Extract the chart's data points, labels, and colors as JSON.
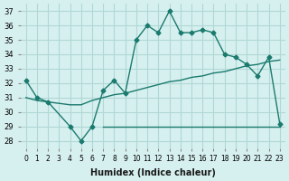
{
  "xlabel": "Humidex (Indice chaleur)",
  "ylabel": "",
  "bg_color": "#d6f0ef",
  "grid_color": "#b0d8d6",
  "line_color": "#1a7a6e",
  "x_ticks": [
    0,
    1,
    2,
    3,
    4,
    5,
    6,
    7,
    8,
    9,
    10,
    11,
    12,
    13,
    14,
    15,
    16,
    17,
    18,
    19,
    20,
    21,
    22,
    23
  ],
  "y_ticks": [
    28,
    29,
    30,
    31,
    32,
    33,
    34,
    35,
    36,
    37
  ],
  "xlim": [
    -0.5,
    23.5
  ],
  "ylim": [
    27.5,
    37.5
  ],
  "line1_x": [
    0,
    1,
    2,
    4,
    5,
    6,
    7,
    8,
    9,
    10,
    11,
    12,
    13,
    14,
    15,
    16,
    17,
    18,
    19,
    20,
    21,
    22,
    23
  ],
  "line1_y": [
    32.2,
    31.0,
    30.7,
    29.0,
    28.0,
    29.0,
    31.5,
    32.2,
    31.3,
    35.0,
    36.0,
    35.5,
    37.0,
    35.5,
    35.5,
    35.7,
    35.5,
    34.0,
    33.8,
    33.3,
    32.5,
    33.8,
    29.2
  ],
  "line2_x": [
    7,
    8,
    9,
    10,
    11,
    12,
    13,
    14,
    15,
    16,
    17,
    18,
    19,
    20,
    21,
    22,
    23
  ],
  "line2_y": [
    29.0,
    29.0,
    29.0,
    29.0,
    29.0,
    29.0,
    29.0,
    29.0,
    29.0,
    29.0,
    29.0,
    29.0,
    29.0,
    29.0,
    29.0,
    29.0,
    29.0
  ],
  "line3_x": [
    0,
    1,
    2,
    4,
    5,
    6,
    7,
    8,
    9,
    10,
    11,
    12,
    13,
    14,
    15,
    16,
    17,
    18,
    19,
    20,
    21,
    22,
    23
  ],
  "line3_y": [
    31.0,
    30.8,
    30.7,
    30.5,
    30.5,
    30.8,
    31.0,
    31.2,
    31.3,
    31.5,
    31.7,
    31.9,
    32.1,
    32.2,
    32.4,
    32.5,
    32.7,
    32.8,
    33.0,
    33.2,
    33.3,
    33.5,
    33.6
  ]
}
